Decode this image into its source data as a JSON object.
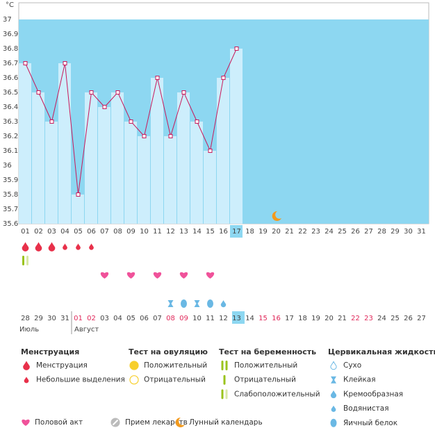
{
  "chart_data": {
    "type": "line",
    "unit": "°C",
    "categories": [
      "01",
      "02",
      "03",
      "04",
      "05",
      "06",
      "07",
      "08",
      "09",
      "10",
      "11",
      "12",
      "13",
      "14",
      "15",
      "16",
      "17",
      "18",
      "19",
      "20",
      "21",
      "22",
      "23",
      "24",
      "25",
      "26",
      "27",
      "28",
      "29",
      "30",
      "31"
    ],
    "values": [
      36.7,
      36.5,
      36.3,
      36.7,
      35.8,
      36.5,
      36.4,
      36.5,
      36.3,
      36.2,
      36.6,
      36.2,
      36.5,
      36.3,
      36.1,
      36.6,
      36.8,
      null,
      null,
      null,
      null,
      null,
      null,
      null,
      null,
      null,
      null,
      null,
      null,
      null,
      null
    ],
    "color": "#c8185a",
    "bar_color": "#cdeefc",
    "background": "#8dd7f1",
    "ylim": [
      35.6,
      37
    ],
    "yticks": [
      37,
      36.9,
      36.8,
      36.7,
      36.6,
      36.5,
      36.4,
      36.3,
      36.2,
      36.1,
      36,
      35.9,
      35.8,
      35.7,
      35.6
    ]
  },
  "calendar": {
    "dates": [
      "28",
      "29",
      "30",
      "31",
      "01",
      "02",
      "03",
      "04",
      "05",
      "06",
      "07",
      "08",
      "09",
      "10",
      "11",
      "12",
      "13",
      "14",
      "15",
      "16",
      "17",
      "18",
      "19",
      "20",
      "21",
      "22",
      "23",
      "24",
      "25",
      "26",
      "27"
    ],
    "months": [
      "Июль",
      "Август"
    ]
  },
  "legend": {
    "groups": [
      {
        "title": "Менструация",
        "items": [
          "Менструация",
          "Небольшие выделения"
        ]
      },
      {
        "title": "Тест на овуляцию",
        "items": [
          "Положительный",
          "Отрицательный"
        ]
      },
      {
        "title": "Тест на беременность",
        "items": [
          "Положительный",
          "Отрицательный",
          "Слабоположительный"
        ]
      },
      {
        "title": "Цервикальная жидкость",
        "items": [
          "Сухо",
          "Клейкая",
          "Кремообразная",
          "Водянистая",
          "Яичный белок"
        ]
      }
    ],
    "extra": [
      "Половой акт",
      "Прием лекарств",
      "Лунный календарь"
    ]
  }
}
